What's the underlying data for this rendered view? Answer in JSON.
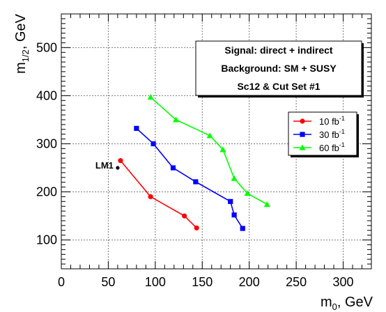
{
  "chart_data": {
    "type": "line",
    "xlabel_base": "m",
    "xlabel_sub": "0",
    "xlabel_tail": ", GeV",
    "ylabel_base": "m",
    "ylabel_sub": "1/2",
    "ylabel_tail": ", GeV",
    "xlim": [
      0,
      330
    ],
    "ylim": [
      40,
      570
    ],
    "x_ticks": [
      0,
      50,
      100,
      150,
      200,
      250,
      300
    ],
    "y_ticks": [
      100,
      200,
      300,
      400,
      500
    ],
    "x_tick_labels": [
      "0",
      "50",
      "100",
      "150",
      "200",
      "250",
      "300"
    ],
    "y_tick_labels": [
      "100",
      "200",
      "300",
      "400",
      "500"
    ],
    "grid": true,
    "info_box": {
      "line1": "Signal: direct + indirect",
      "line2": "Background: SM + SUSY",
      "line3": "Sc12 & Cut Set #1"
    },
    "annotation": {
      "label": "LM1",
      "point": {
        "x": 60,
        "y": 250
      }
    },
    "legend_placement": "right",
    "series": [
      {
        "name": "10 fb",
        "name_sup": "-1",
        "color": "#ff0000",
        "marker": "circle",
        "x": [
          63,
          95,
          131,
          144
        ],
        "y": [
          265,
          190,
          150,
          125
        ]
      },
      {
        "name": "30 fb",
        "name_sup": "-1",
        "color": "#0000ff",
        "marker": "square",
        "x": [
          80,
          98,
          119,
          143,
          180,
          184,
          193
        ],
        "y": [
          332,
          300,
          250,
          221,
          180,
          152,
          124
        ]
      },
      {
        "name": "60 fb",
        "name_sup": "-1",
        "color": "#00ff00",
        "marker": "triangle",
        "x": [
          95,
          122,
          158,
          172,
          184,
          198,
          219
        ],
        "y": [
          397,
          350,
          317,
          288,
          228,
          197,
          174
        ]
      }
    ]
  }
}
